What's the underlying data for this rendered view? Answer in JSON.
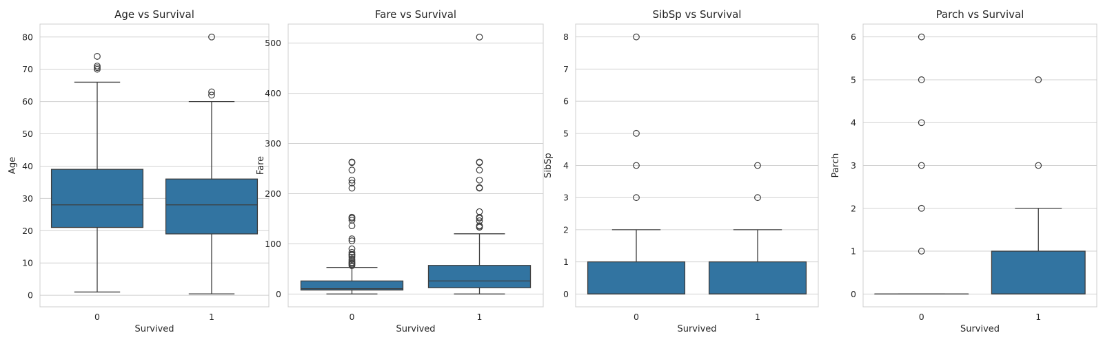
{
  "chart_data": [
    {
      "type": "box",
      "title": "Age vs Survival",
      "xlabel": "Survived",
      "ylabel": "Age",
      "ylim": [
        -3.6,
        84.0
      ],
      "yticks": [
        0,
        10,
        20,
        30,
        40,
        50,
        60,
        70,
        80
      ],
      "categories": [
        "0",
        "1"
      ],
      "boxes": [
        {
          "category": "0",
          "whisker_low": 1,
          "q1": 21,
          "median": 28,
          "q3": 39,
          "whisker_high": 66,
          "outliers": [
            70,
            70.5,
            71,
            74
          ]
        },
        {
          "category": "1",
          "whisker_low": 0.42,
          "q1": 19,
          "median": 28,
          "q3": 36,
          "whisker_high": 60,
          "outliers": [
            62,
            63,
            80
          ]
        }
      ],
      "grid": "horizontal",
      "color": "#3274a1"
    },
    {
      "type": "box",
      "title": "Fare vs Survival",
      "xlabel": "Survived",
      "ylabel": "Fare",
      "ylim": [
        -25.6,
        537.9
      ],
      "yticks": [
        0,
        100,
        200,
        300,
        400,
        500
      ],
      "categories": [
        "0",
        "1"
      ],
      "boxes": [
        {
          "category": "0",
          "whisker_low": 0,
          "q1": 7.9,
          "median": 10.5,
          "q3": 26,
          "whisker_high": 53,
          "outliers": [
            56.5,
            59,
            61,
            63,
            66,
            69.5,
            73.5,
            77,
            79,
            83,
            90,
            106,
            110,
            136,
            147,
            151,
            153,
            211,
            221,
            227,
            247,
            262,
            263
          ]
        },
        {
          "category": "1",
          "whisker_low": 0,
          "q1": 12.5,
          "median": 26,
          "q3": 57,
          "whisker_high": 120,
          "outliers": [
            133,
            135,
            136,
            146,
            151,
            153,
            164,
            211,
            212,
            227,
            247,
            262,
            263,
            512
          ]
        }
      ],
      "grid": "horizontal",
      "color": "#3274a1"
    },
    {
      "type": "box",
      "title": "SibSp vs Survival",
      "xlabel": "Survived",
      "ylabel": "SibSp",
      "ylim": [
        -0.4,
        8.4
      ],
      "yticks": [
        0,
        1,
        2,
        3,
        4,
        5,
        6,
        7,
        8
      ],
      "categories": [
        "0",
        "1"
      ],
      "boxes": [
        {
          "category": "0",
          "whisker_low": 0,
          "q1": 0,
          "median": 0,
          "q3": 1,
          "whisker_high": 2,
          "outliers": [
            3,
            4,
            5,
            8
          ]
        },
        {
          "category": "1",
          "whisker_low": 0,
          "q1": 0,
          "median": 0,
          "q3": 1,
          "whisker_high": 2,
          "outliers": [
            3,
            4
          ]
        }
      ],
      "grid": "horizontal",
      "color": "#3274a1"
    },
    {
      "type": "box",
      "title": "Parch vs Survival",
      "xlabel": "Survived",
      "ylabel": "Parch",
      "ylim": [
        -0.3,
        6.3
      ],
      "yticks": [
        0,
        1,
        2,
        3,
        4,
        5,
        6
      ],
      "categories": [
        "0",
        "1"
      ],
      "boxes": [
        {
          "category": "0",
          "whisker_low": 0,
          "q1": 0,
          "median": 0,
          "q3": 0,
          "whisker_high": 0,
          "outliers": [
            1,
            2,
            3,
            4,
            5,
            6
          ]
        },
        {
          "category": "1",
          "whisker_low": 0,
          "q1": 0,
          "median": 0,
          "q3": 1,
          "whisker_high": 2,
          "outliers": [
            3,
            5
          ]
        }
      ],
      "grid": "horizontal",
      "color": "#3274a1"
    }
  ]
}
